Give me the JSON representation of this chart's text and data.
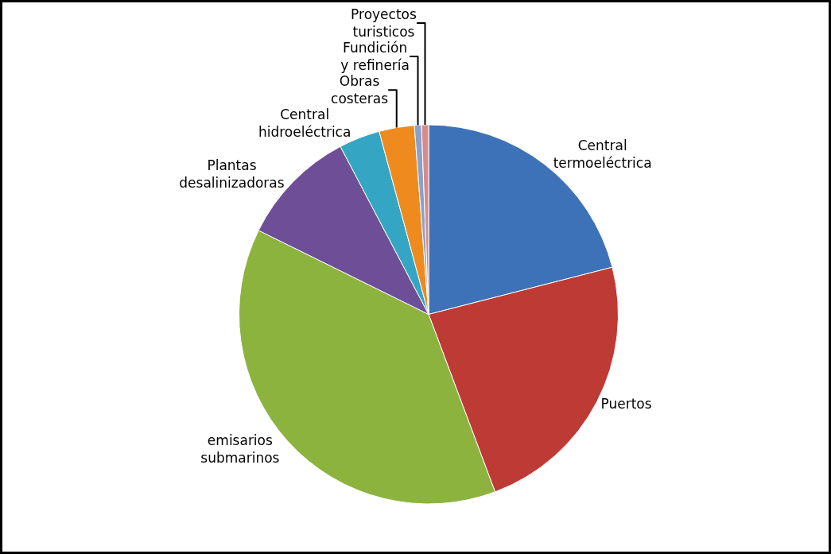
{
  "chart_data": {
    "type": "pie",
    "categories": [
      "Central termoeléctrica",
      "Puertos",
      "emisarios submarinos",
      "Plantas desalinizadoras",
      "Central hidroeléctrica",
      "Obras costeras",
      "Fundición y refinería",
      "Proyectos turisticos"
    ],
    "values": [
      21,
      23.3,
      38,
      10,
      3.5,
      3,
      0.6,
      0.6
    ],
    "colors": [
      "#3d72b9",
      "#be3a35",
      "#8db33f",
      "#6e4f97",
      "#34a6c3",
      "#ef8a1f",
      "#8aa2c9",
      "#d68b8a"
    ],
    "legend": false
  }
}
